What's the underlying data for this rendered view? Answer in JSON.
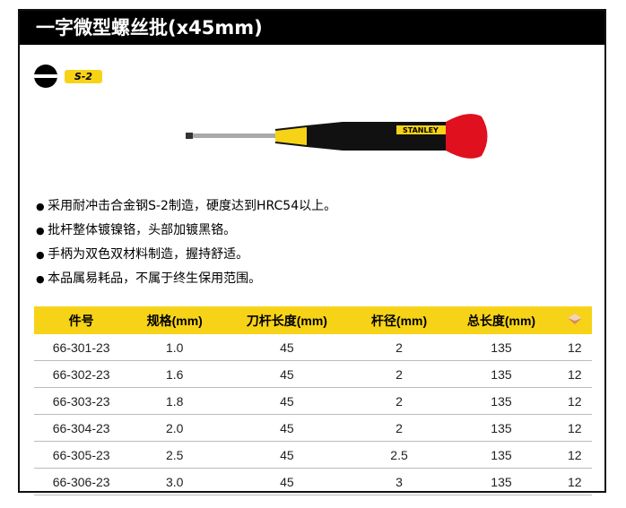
{
  "title": "一字微型螺丝批(x45mm)",
  "badge": "S-2",
  "brand": "STANLEY",
  "bullets": [
    "采用耐冲击合金钢S-2制造，硬度达到HRC54以上。",
    "批杆整体镀镍铬，头部加镀黑铬。",
    "手柄为双色双材料制造，握持舒适。",
    "本品属易耗品，不属于终生保用范围。"
  ],
  "table": {
    "headers": [
      "件号",
      "规格(mm)",
      "刀杆长度(mm)",
      "杆径(mm)",
      "总长度(mm)"
    ],
    "last_header_icon": "box-icon",
    "rows": [
      [
        "66-301-23",
        "1.0",
        "45",
        "2",
        "135",
        "12"
      ],
      [
        "66-302-23",
        "1.6",
        "45",
        "2",
        "135",
        "12"
      ],
      [
        "66-303-23",
        "1.8",
        "45",
        "2",
        "135",
        "12"
      ],
      [
        "66-304-23",
        "2.0",
        "45",
        "2",
        "135",
        "12"
      ],
      [
        "66-305-23",
        "2.5",
        "45",
        "2.5",
        "135",
        "12"
      ],
      [
        "66-306-23",
        "3.0",
        "45",
        "3",
        "135",
        "12"
      ]
    ]
  },
  "colors": {
    "accent": "#f7d317",
    "handle_red": "#e0101e"
  }
}
